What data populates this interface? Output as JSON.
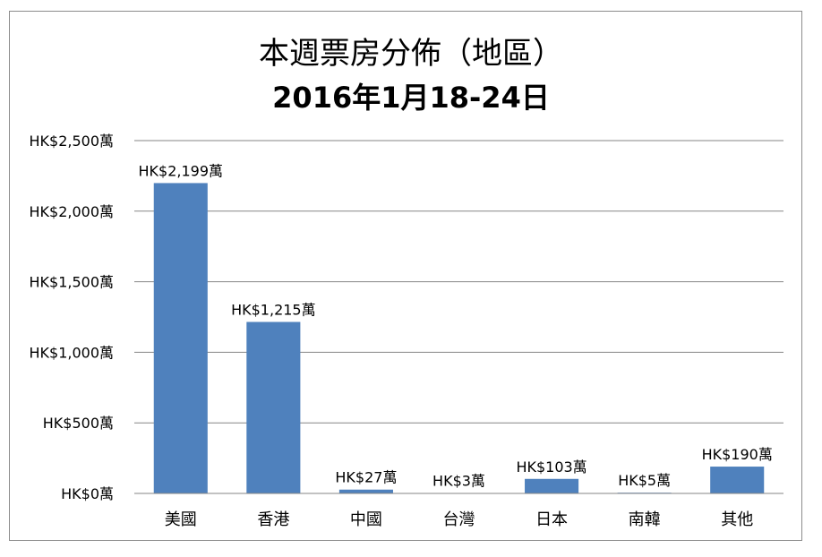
{
  "chart_data": {
    "type": "bar",
    "title": "本週票房分佈（地區）",
    "subtitle": "2016年1月18-24日",
    "categories": [
      "美國",
      "香港",
      "中國",
      "台灣",
      "日本",
      "南韓",
      "其他"
    ],
    "values": [
      2199,
      1215,
      27,
      3,
      103,
      5,
      190
    ],
    "data_labels": [
      "HK$2,199萬",
      "HK$1,215萬",
      "HK$27萬",
      "HK$3萬",
      "HK$103萬",
      "HK$5萬",
      "HK$190萬"
    ],
    "y_ticks": [
      0,
      500,
      1000,
      1500,
      2000,
      2500
    ],
    "y_tick_labels": [
      "HK$0萬",
      "HK$500萬",
      "HK$1,000萬",
      "HK$1,500萬",
      "HK$2,000萬",
      "HK$2,500萬"
    ],
    "ylim": [
      0,
      2500
    ],
    "grid": true,
    "legend": "none",
    "bar_color": "#4f81bd",
    "grid_color": "#868686"
  }
}
